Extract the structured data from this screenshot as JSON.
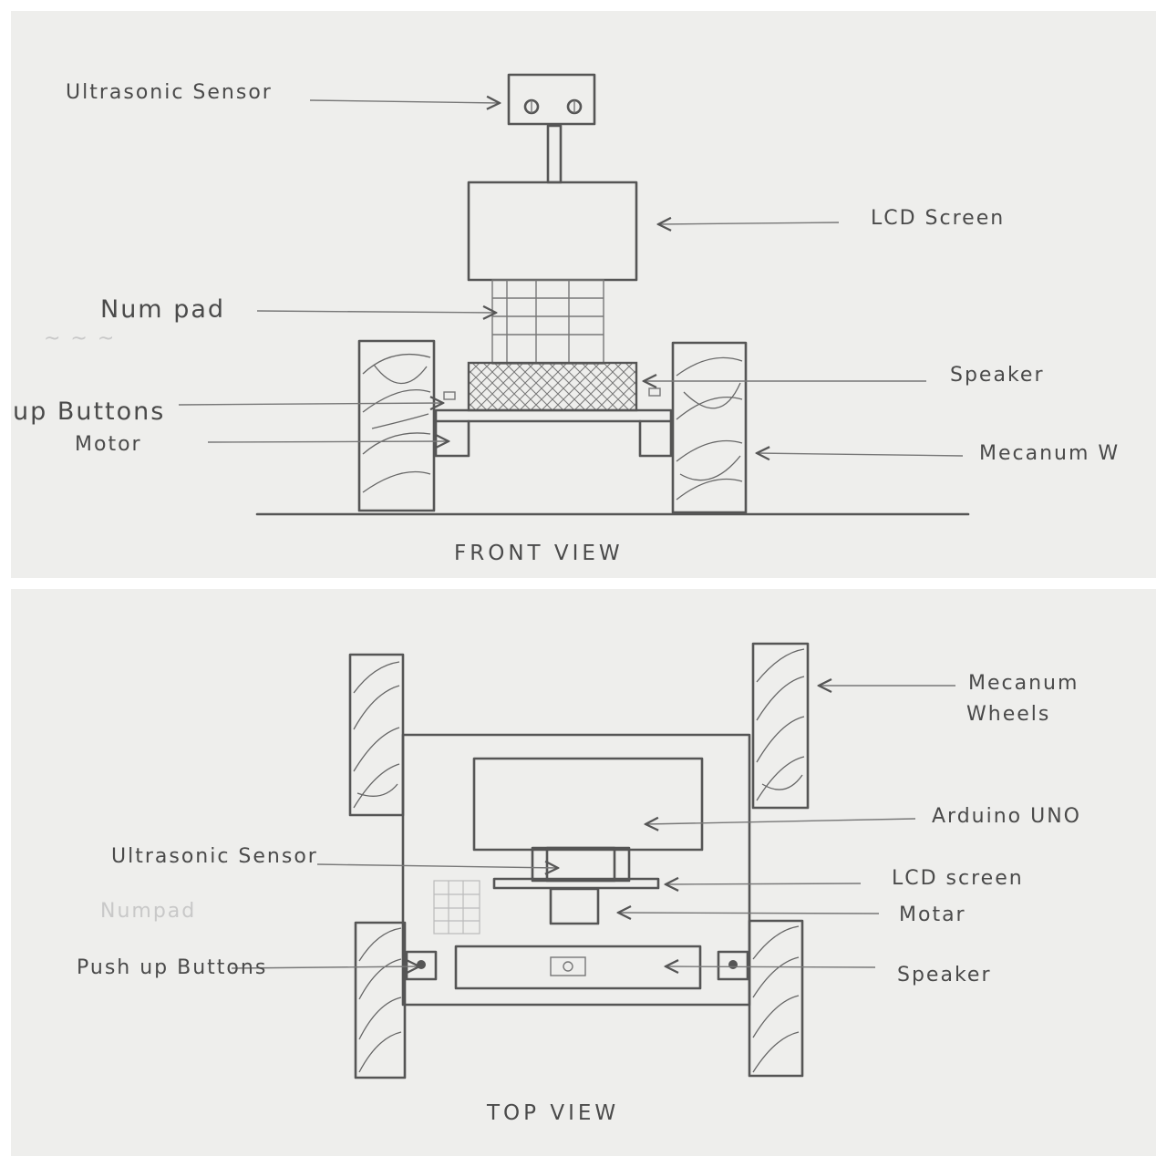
{
  "front_view": {
    "title": "FRONT VIEW",
    "labels": {
      "ultrasonic_sensor": "Ultrasonic Sensor",
      "lcd_screen": "LCD Screen",
      "numpad": "Num pad",
      "speaker": "Speaker",
      "push_buttons": "up Buttons",
      "motor": "Motor",
      "mecanum_wheels": "Mecanum W"
    }
  },
  "top_view": {
    "title": "TOP VIEW",
    "labels": {
      "mecanum_wheels_line1": "Mecanum",
      "mecanum_wheels_line2": "Wheels",
      "arduino_uno": "Arduino UNO",
      "ultrasonic_sensor": "Ultrasonic Sensor",
      "lcd_screen": "LCD screen",
      "motor": "Motar",
      "numpad": "Numpad",
      "push_buttons": "Push up Buttons",
      "speaker": "Speaker"
    }
  },
  "colors": {
    "pencil": "#555555",
    "paper": "#eeeeec"
  }
}
